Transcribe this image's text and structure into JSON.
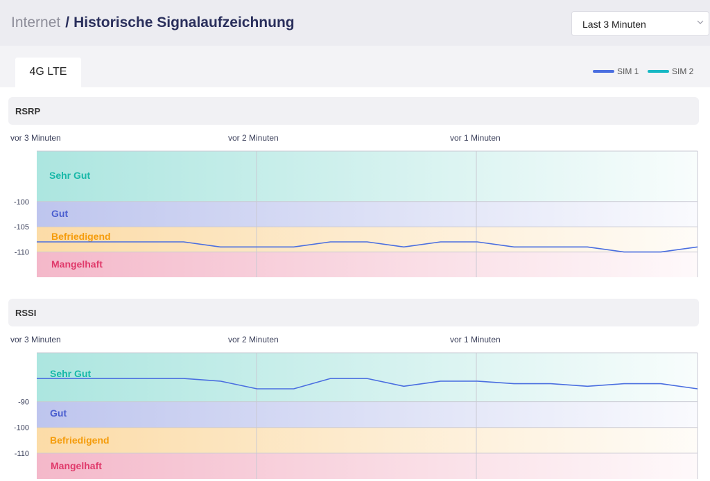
{
  "header": {
    "breadcrumb_parent": "Internet",
    "separator": "/",
    "title": "Historische Signalaufzeichnung",
    "time_range": {
      "selected": "Last 3 Minuten",
      "icon": "chevron-down-icon"
    }
  },
  "tabs": [
    {
      "label": "4G LTE",
      "active": true
    }
  ],
  "legend": [
    {
      "label": "SIM 1",
      "color": "#4a6ee0"
    },
    {
      "label": "SIM 2",
      "color": "#17b8c4"
    }
  ],
  "zones": [
    {
      "name": "Sehr Gut",
      "color": "#18b8a8"
    },
    {
      "name": "Gut",
      "color": "#4a5ecf"
    },
    {
      "name": "Befriedigend",
      "color": "#f59c0b"
    },
    {
      "name": "Mangelhaft",
      "color": "#e03a6b"
    }
  ],
  "chart_data": [
    {
      "type": "line",
      "title": "RSRP",
      "x_tick_labels": [
        "vor 3 Minuten",
        "vor 2 Minuten",
        "vor 1 Minuten"
      ],
      "y_tick_labels": [
        -100,
        -105,
        -110
      ],
      "zone_thresholds": [
        -100,
        -105,
        -110
      ],
      "ylim": [
        -115,
        -90
      ],
      "series": [
        {
          "name": "SIM 1",
          "color": "#4a6ee0",
          "values": [
            -108,
            -108,
            -108,
            -108,
            -108,
            -109,
            -109,
            -109,
            -108,
            -108,
            -109,
            -108,
            -108,
            -109,
            -109,
            -109,
            -110,
            -110,
            -109
          ]
        }
      ]
    },
    {
      "type": "line",
      "title": "RSSI",
      "x_tick_labels": [
        "vor 3 Minuten",
        "vor 2 Minuten",
        "vor 1 Minuten"
      ],
      "y_tick_labels": [
        -90,
        -100,
        -110
      ],
      "zone_thresholds": [
        -90,
        -100,
        -110
      ],
      "ylim": [
        -120,
        -71
      ],
      "series": [
        {
          "name": "SIM 1",
          "color": "#4a6ee0",
          "values": [
            -81,
            -81,
            -81,
            -81,
            -81,
            -82,
            -85,
            -85,
            -81,
            -81,
            -84,
            -82,
            -82,
            -83,
            -83,
            -84,
            -83,
            -83,
            -85
          ]
        }
      ]
    }
  ]
}
